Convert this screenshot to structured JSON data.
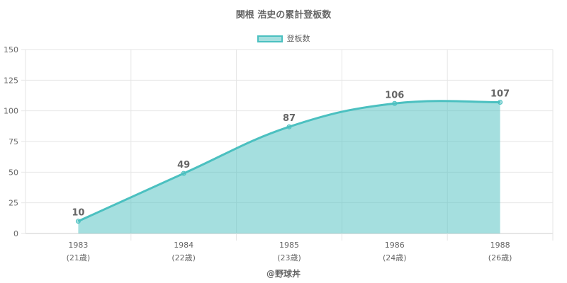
{
  "chart_data": {
    "type": "area",
    "title": "関根 浩史の累計登板数",
    "series": [
      {
        "name": "登板数",
        "color": "#4BC0C0",
        "fill": "rgba(75,192,192,0.5)",
        "values": [
          10,
          49,
          87,
          106,
          107
        ]
      }
    ],
    "categories": [
      "1983",
      "1984",
      "1985",
      "1986",
      "1988"
    ],
    "sublabels": [
      "(21歳)",
      "(22歳)",
      "(23歳)",
      "(24歳)",
      "(26歳)"
    ],
    "data_labels": [
      "10",
      "49",
      "87",
      "106",
      "107"
    ],
    "yticks": [
      "0",
      "25",
      "50",
      "75",
      "100",
      "125",
      "150"
    ],
    "ylim": [
      0,
      150
    ],
    "grid": true,
    "legend": "top-center"
  },
  "credit": "@野球丼"
}
